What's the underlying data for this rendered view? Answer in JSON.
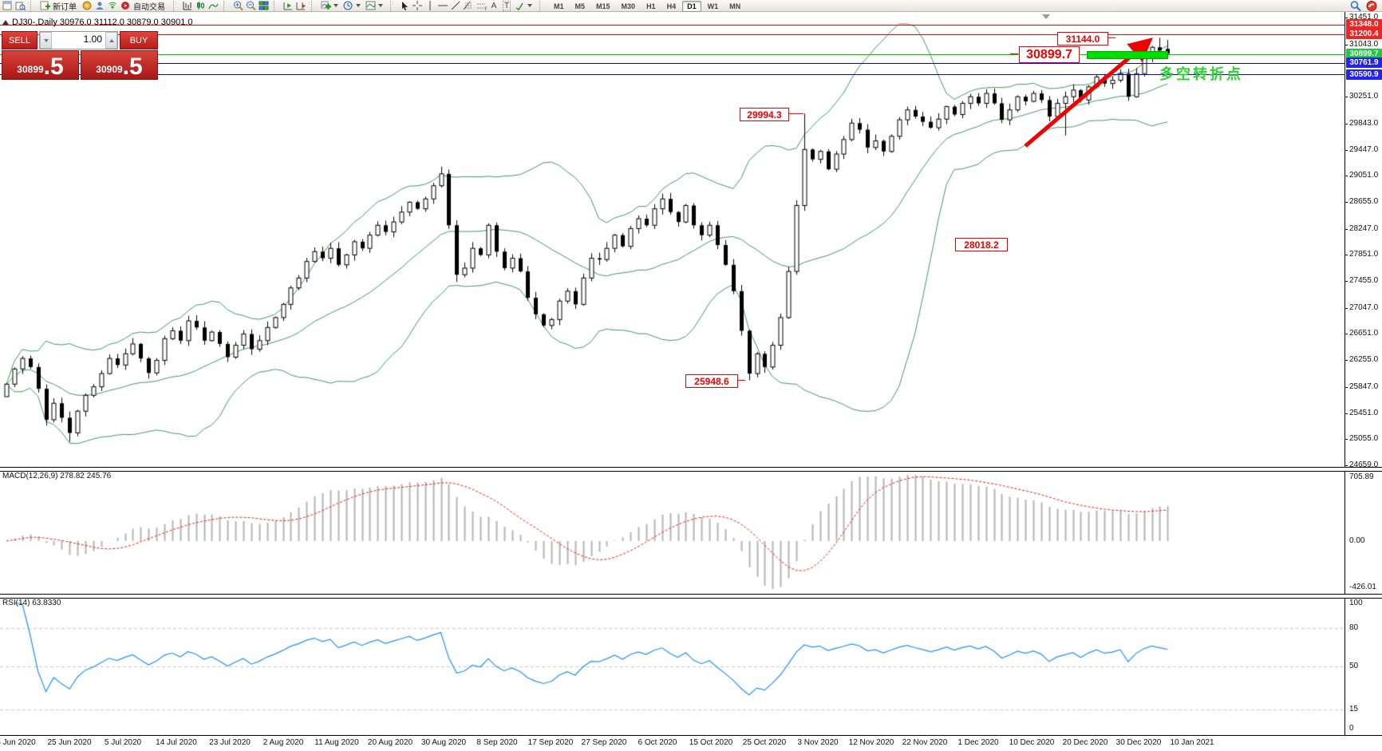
{
  "toolbar": {
    "new_order_label": "新订单",
    "autotrading_label": "自动交易",
    "timeframes": [
      "M1",
      "M5",
      "M15",
      "M30",
      "H1",
      "H4",
      "D1",
      "W1",
      "MN"
    ],
    "selected_timeframe": "D1",
    "glyph_a": "A",
    "glyph_t": "T",
    "glyph_f": "F"
  },
  "chart": {
    "title": "DJ30-,Daily  30976.0 31112.0 30879.0 30901.0",
    "trade_panel": {
      "sell_label": "SELL",
      "buy_label": "BUY",
      "volume": "1.00",
      "sell_price_small": "30899",
      "sell_price_big": ".5",
      "buy_price_small": "30909",
      "buy_price_big": ".5"
    },
    "annotations": {
      "high_label": "31144.0",
      "pivot_label": "30899.7",
      "nov_high_label": "29994.3",
      "mid_label": "28018.2",
      "oct_low_label": "25948.6",
      "cn_note": "多空转折点"
    }
  },
  "macd_panel": {
    "label": "MACD(12,26,9)",
    "value_main": "278.82",
    "value_signal": "245.76",
    "axis_top": "705.89",
    "axis_zero": "0.00",
    "axis_bottom": "-426.01"
  },
  "rsi_panel": {
    "label": "RSI(14)",
    "value": "63.8330",
    "axis": [
      "100",
      "80",
      "50",
      "15",
      "0"
    ]
  },
  "chart_data": {
    "type": "candlestick",
    "symbol": "DJ30-",
    "timeframe": "Daily",
    "title": "DJ30-,Daily",
    "last_bar_ohlc": {
      "open": 30976.0,
      "high": 31112.0,
      "low": 30879.0,
      "close": 30901.0
    },
    "bid": 30899.5,
    "ask": 30909.5,
    "y_axis_ticks": [
      31451.0,
      31043.0,
      30251.0,
      29843.0,
      29447.0,
      29051.0,
      28655.0,
      28247.0,
      27851.0,
      27455.0,
      27047.0,
      26651.0,
      26255.0,
      25847.0,
      25451.0,
      25055.0,
      24659.0
    ],
    "x_axis_dates": [
      "6 Jun 2020",
      "25 Jun 2020",
      "5 Jul 2020",
      "14 Jul 2020",
      "23 Jul 2020",
      "2 Aug 2020",
      "11 Aug 2020",
      "20 Aug 2020",
      "30 Aug 2020",
      "8 Sep 2020",
      "17 Sep 2020",
      "27 Sep 2020",
      "6 Oct 2020",
      "15 Oct 2020",
      "25 Oct 2020",
      "3 Nov 2020",
      "12 Nov 2020",
      "22 Nov 2020",
      "1 Dec 2020",
      "10 Dec 2020",
      "20 Dec 2020",
      "30 Dec 2020",
      "10 Jan 2021"
    ],
    "closes": [
      25890,
      26120,
      26280,
      26150,
      25820,
      25350,
      25600,
      25380,
      25150,
      25480,
      25720,
      25850,
      26050,
      26280,
      26180,
      26350,
      26500,
      26280,
      26060,
      26250,
      26580,
      26700,
      26550,
      26850,
      26750,
      26550,
      26680,
      26500,
      26300,
      26480,
      26650,
      26420,
      26550,
      26750,
      26900,
      27100,
      27350,
      27500,
      27750,
      27900,
      27800,
      27950,
      27700,
      27850,
      28050,
      27950,
      28150,
      28300,
      28200,
      28350,
      28500,
      28650,
      28550,
      28700,
      28900,
      29080,
      28300,
      27550,
      27650,
      27950,
      27850,
      28300,
      27900,
      27650,
      27800,
      27600,
      27200,
      26950,
      26780,
      26870,
      27150,
      27300,
      27100,
      27500,
      27800,
      27780,
      27950,
      28150,
      27980,
      28250,
      28400,
      28300,
      28550,
      28700,
      28500,
      28350,
      28600,
      28300,
      28150,
      28300,
      28000,
      27700,
      27300,
      26700,
      26050,
      26350,
      26150,
      26480,
      26900,
      27600,
      28600,
      29450,
      29300,
      29420,
      29150,
      29380,
      29600,
      29850,
      29750,
      29480,
      29580,
      29420,
      29650,
      29900,
      30050,
      29950,
      29870,
      29780,
      29910,
      30100,
      29980,
      30150,
      30250,
      30150,
      30300,
      30150,
      29900,
      30050,
      30250,
      30180,
      30300,
      30200,
      29950,
      30150,
      30250,
      30350,
      30200,
      30400,
      30550,
      30450,
      30500,
      30600,
      30250,
      30600,
      30850,
      31000,
      30950,
      30901
    ],
    "bar_overrides": {
      "0": {
        "open": 25700
      },
      "8": {
        "low": 25015
      },
      "55": {
        "high": 29190
      },
      "57": {
        "low": 27440
      },
      "94": {
        "low": 25948.6
      },
      "101": {
        "high": 29994.3
      },
      "134": {
        "low": 29660
      },
      "146": {
        "high": 31144.0
      },
      "147": {
        "open": 30976.0,
        "high": 31112.0,
        "low": 30879.0,
        "close": 30901.0
      }
    },
    "hlines": [
      {
        "price": 31348.0,
        "color": "#ff0000"
      },
      {
        "price": 31200.4,
        "color": "#ff0000"
      },
      {
        "price": 30899.7,
        "color": "#00c400"
      },
      {
        "price": 30761.9,
        "color": "#0000ff"
      },
      {
        "price": 30590.9,
        "color": "#0000ff"
      }
    ],
    "price_tags": [
      {
        "value": "31348.0",
        "color": "#f22323"
      },
      {
        "value": "31200.4",
        "color": "#f22323"
      },
      {
        "value": "30899.7",
        "color": "#1fc93f"
      },
      {
        "value": "30761.9",
        "color": "#2121f0"
      },
      {
        "value": "30590.9",
        "color": "#2121f0"
      }
    ],
    "indicators": {
      "bollinger": {
        "period": 20,
        "deviation": 2,
        "color": "#3c9a5f"
      },
      "macd": {
        "fast": 12,
        "slow": 26,
        "signal": 9,
        "current": 278.82,
        "signal_current": 245.76,
        "axis_max": 705.89,
        "axis_min": -426.01
      },
      "rsi": {
        "period": 14,
        "current": 63.833,
        "levels": [
          80,
          50,
          15
        ]
      }
    },
    "annotations": [
      {
        "kind": "text_box",
        "text": "31144.0",
        "price": 31144.0
      },
      {
        "kind": "text_box",
        "text": "30899.7",
        "price": 30899.7
      },
      {
        "kind": "text_box",
        "text": "29994.3",
        "price": 29994.3
      },
      {
        "kind": "text_box",
        "text": "28018.2",
        "price": 28018.2
      },
      {
        "kind": "text_box",
        "text": "25948.6",
        "price": 25948.6
      },
      {
        "kind": "trend_arrow",
        "color": "#f00000"
      },
      {
        "kind": "highlight_bar",
        "price": 30899.7,
        "color": "#00dd00"
      },
      {
        "kind": "text",
        "text": "多空转折点",
        "color": "#2ed12e"
      }
    ]
  }
}
